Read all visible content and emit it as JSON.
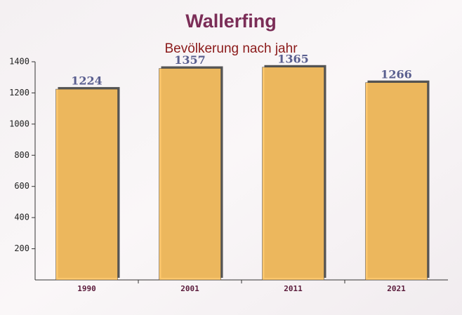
{
  "chart_data": {
    "type": "bar",
    "title": "Wallerfing",
    "subtitle": "Bevölkerung nach jahr",
    "categories": [
      "1990",
      "2001",
      "2011",
      "2021"
    ],
    "values": [
      1224,
      1357,
      1365,
      1266
    ],
    "color": "#fdc25e",
    "ylim": [
      0,
      1400
    ],
    "yticks": [
      200,
      400,
      600,
      800,
      1000,
      1200,
      1400
    ]
  }
}
